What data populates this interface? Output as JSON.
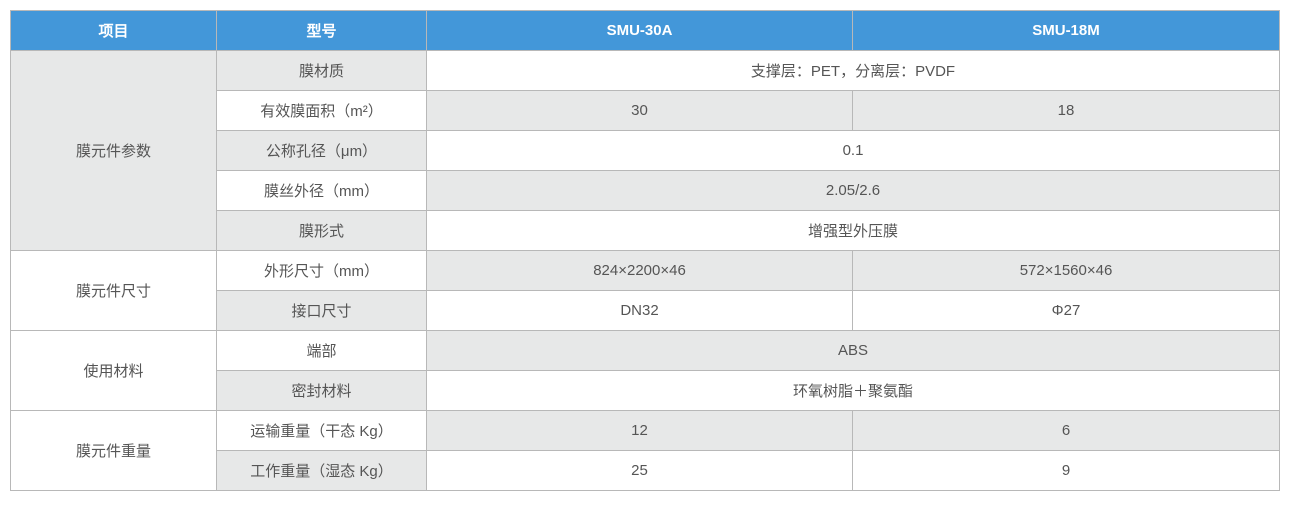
{
  "colors": {
    "header_bg": "#4397d9",
    "header_text": "#ffffff",
    "border": "#b8b8b8",
    "shade_bg": "#e7e8e8",
    "text": "#555555"
  },
  "columns": {
    "item": "项目",
    "model": "型号",
    "p1": "SMU-30A",
    "p2": "SMU-18M"
  },
  "groups": [
    {
      "key": "membrane_params",
      "label": "膜元件参数",
      "rowspan": 5
    },
    {
      "key": "membrane_dims",
      "label": "膜元件尺寸",
      "rowspan": 2
    },
    {
      "key": "materials",
      "label": "使用材料",
      "rowspan": 2
    },
    {
      "key": "weight",
      "label": "膜元件重量",
      "rowspan": 2
    }
  ],
  "rows": [
    {
      "group": 0,
      "first": true,
      "label_shade": true,
      "label": "膜材质",
      "merged": true,
      "v": "支撑层：PET，分离层：PVDF",
      "val_shade": false
    },
    {
      "group": 0,
      "first": false,
      "label_shade": false,
      "label": "有效膜面积（m²）",
      "merged": false,
      "v1": "30",
      "v2": "18",
      "val_shade": true
    },
    {
      "group": 0,
      "first": false,
      "label_shade": true,
      "label": "公称孔径（μm）",
      "merged": true,
      "v": "0.1",
      "val_shade": false
    },
    {
      "group": 0,
      "first": false,
      "label_shade": false,
      "label": "膜丝外径（mm）",
      "merged": true,
      "v": "2.05/2.6",
      "val_shade": true
    },
    {
      "group": 0,
      "first": false,
      "label_shade": true,
      "label": "膜形式",
      "merged": true,
      "v": "增强型外压膜",
      "val_shade": false
    },
    {
      "group": 1,
      "first": true,
      "label_shade": false,
      "label": "外形尺寸（mm）",
      "merged": false,
      "v1": "824×2200×46",
      "v2": "572×1560×46",
      "val_shade": true
    },
    {
      "group": 1,
      "first": false,
      "label_shade": true,
      "label": "接口尺寸",
      "merged": false,
      "v1": "DN32",
      "v2": "Φ27",
      "val_shade": false
    },
    {
      "group": 2,
      "first": true,
      "label_shade": false,
      "label": "端部",
      "merged": true,
      "v": "ABS",
      "val_shade": true
    },
    {
      "group": 2,
      "first": false,
      "label_shade": true,
      "label": "密封材料",
      "merged": true,
      "v": "环氧树脂＋聚氨酯",
      "val_shade": false
    },
    {
      "group": 3,
      "first": true,
      "label_shade": false,
      "label": "运输重量（干态 Kg）",
      "merged": false,
      "v1": "12",
      "v2": "6",
      "val_shade": true
    },
    {
      "group": 3,
      "first": false,
      "label_shade": true,
      "label": "工作重量（湿态 Kg）",
      "merged": false,
      "v1": "25",
      "v2": "9",
      "val_shade": false
    }
  ]
}
